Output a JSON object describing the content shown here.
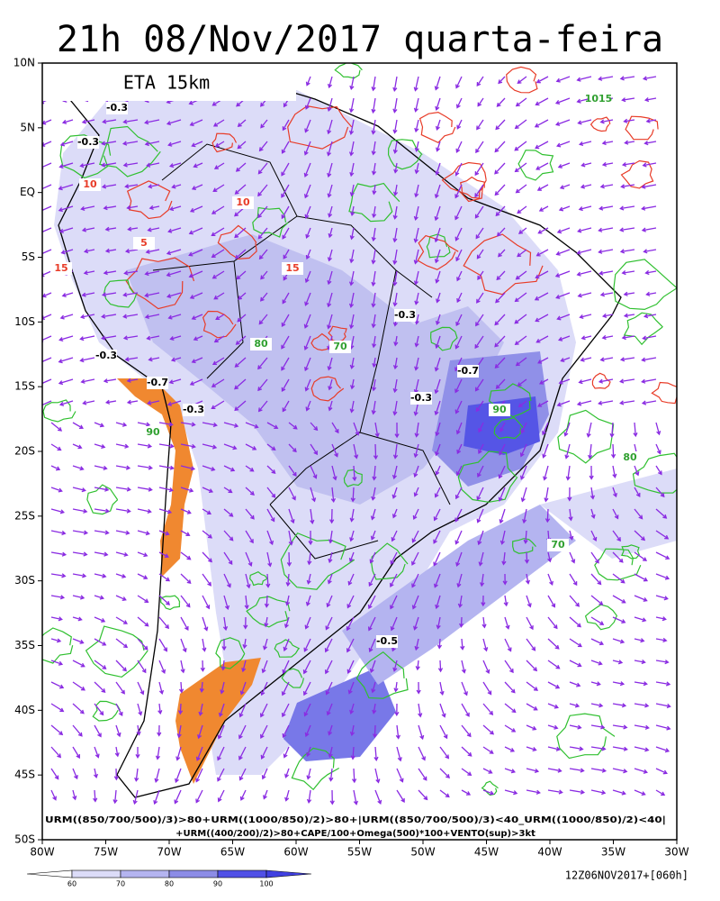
{
  "header": {
    "title": "21h 08/Nov/2017 quarta-feira",
    "model": "ETA 15km"
  },
  "map": {
    "lat_labels": [
      "10N",
      "5N",
      "EQ",
      "5S",
      "10S",
      "15S",
      "20S",
      "25S",
      "30S",
      "35S",
      "40S",
      "45S",
      "50S"
    ],
    "lon_labels": [
      "80W",
      "75W",
      "70W",
      "65W",
      "60W",
      "55W",
      "50W",
      "45W",
      "40W",
      "35W",
      "30W"
    ],
    "contour_labels": [
      "-0.3",
      "-0.3",
      "-0.3",
      "-0.7",
      "-0.3",
      "-0.3",
      "-0.7",
      "-0.3",
      "-0.5",
      "70",
      "90",
      "80",
      "70",
      "80",
      "90",
      "10",
      "15",
      "5",
      "10",
      "15",
      "1015"
    ],
    "caption": [
      "URM((850/700/500)/3)>80+URM((1000/850)/2)>80+|URM((850/700/500)/3)<40_URM((1000/850)/2)<40|",
      "+URM((400/200)/2)>80+CAPE/100+Omega(500)*100+VENTO(sup)>3kt"
    ]
  },
  "colorbar": {
    "labels": [
      "60",
      "70",
      "80",
      "90",
      "100"
    ]
  },
  "footer": {
    "run": "12Z06NOV2017+[060h]"
  }
}
